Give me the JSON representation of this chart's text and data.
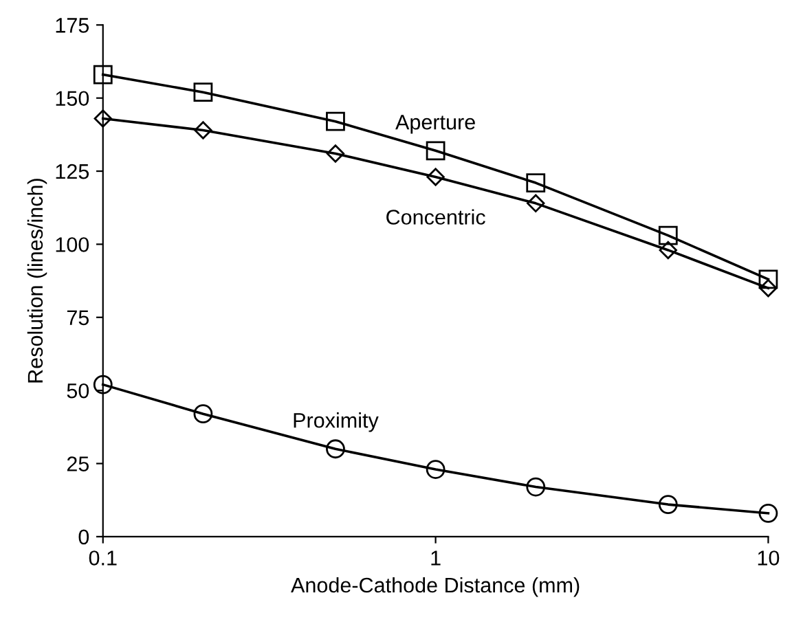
{
  "chart_data": {
    "type": "line",
    "xlabel": "Anode-Cathode Distance (mm)",
    "ylabel": "Resolution (lines/inch)",
    "x": [
      0.1,
      0.2,
      0.5,
      1,
      2,
      5,
      10
    ],
    "series": [
      {
        "name": "Aperture",
        "color": "#000000",
        "marker": "square",
        "values": [
          158,
          152,
          142,
          132,
          121,
          103,
          88
        ]
      },
      {
        "name": "Concentric",
        "color": "#000000",
        "marker": "diamond",
        "values": [
          143,
          139,
          131,
          123,
          114,
          98,
          85
        ]
      },
      {
        "name": "Proximity",
        "color": "#000000",
        "marker": "circle",
        "values": [
          52,
          42,
          30,
          23,
          17,
          11,
          8
        ]
      }
    ],
    "log": "x",
    "xlim": [
      0.1,
      10
    ],
    "xticks": [
      0.1,
      1,
      10
    ],
    "ylim": [
      0,
      175
    ],
    "yticks": [
      0,
      25,
      50,
      75,
      100,
      125,
      150,
      175
    ],
    "grid": false,
    "legend": false,
    "line_style": "solid"
  }
}
